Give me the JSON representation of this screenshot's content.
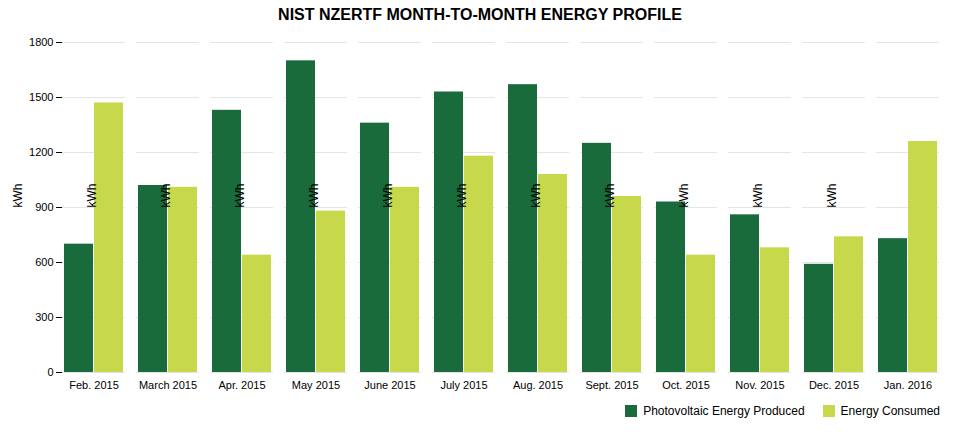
{
  "chart_data": {
    "type": "bar",
    "title": "NIST NZERTF MONTH-TO-MONTH ENERGY PROFILE",
    "categories": [
      "Feb. 2015",
      "March 2015",
      "Apr. 2015",
      "May 2015",
      "June 2015",
      "July 2015",
      "Aug. 2015",
      "Sept. 2015",
      "Oct. 2015",
      "Nov. 2015",
      "Dec. 2015",
      "Jan. 2016"
    ],
    "series": [
      {
        "name": "Photovoltaic Energy Produced",
        "color": "#1a6b3c",
        "values": [
          700,
          1020,
          1430,
          1700,
          1360,
          1530,
          1570,
          1250,
          930,
          860,
          590,
          730
        ]
      },
      {
        "name": "Energy Consumed",
        "color": "#c8d84b",
        "values": [
          1470,
          1010,
          640,
          880,
          1010,
          1180,
          1080,
          960,
          640,
          680,
          740,
          1260
        ]
      }
    ],
    "ylabel": "kWh",
    "ylim": [
      0,
      1800
    ],
    "yticks": [
      0,
      300,
      600,
      900,
      1200,
      1500,
      1800
    ],
    "grid": true,
    "legend": "lower right"
  }
}
